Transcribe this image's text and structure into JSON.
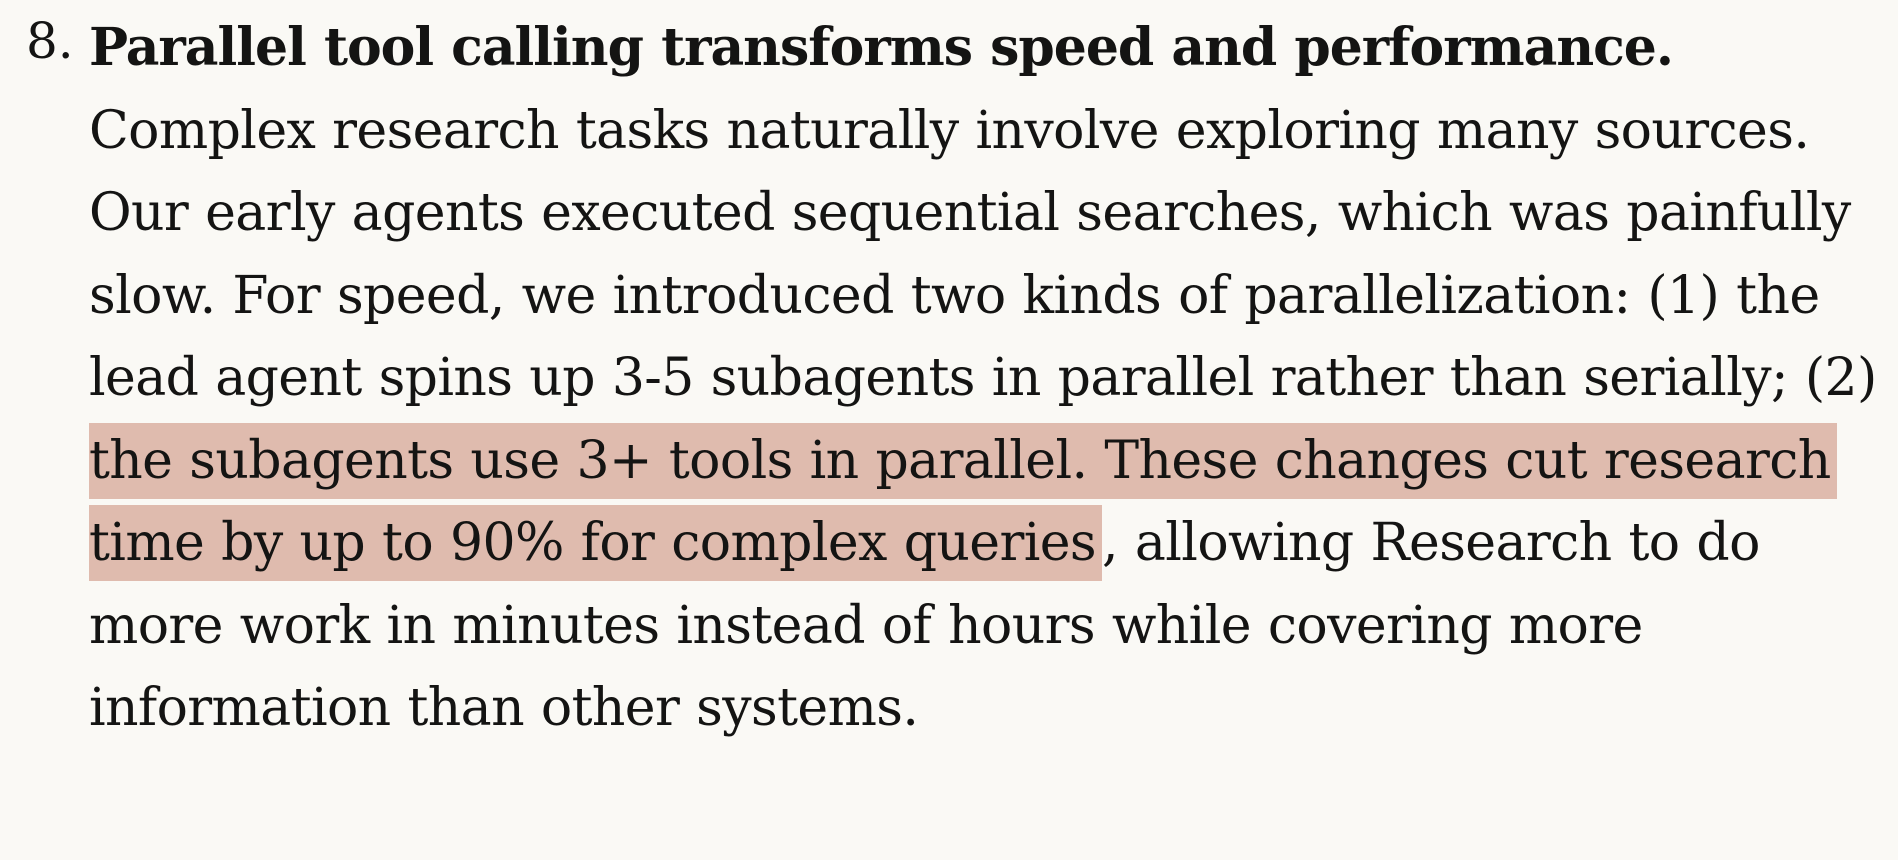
{
  "item": {
    "marker": "8.",
    "title": "Parallel tool calling transforms speed and performance.",
    "body_before": " Complex research tasks naturally involve exploring many sources. Our early agents executed sequential searches, which was painfully slow. For speed, we introduced two kinds of parallelization: (1) the lead agent spins up 3-5 subagents in parallel rather than serially; (2) ",
    "highlighted": "the subagents use 3+ tools in parallel. These changes cut research time by up to 90% for complex queries",
    "body_after": ", allowing Research to do more work in minutes instead of hours while covering more information than other systems."
  },
  "colors": {
    "background": "#faf9f5",
    "text": "#141413",
    "highlight": "#dfbbae"
  }
}
